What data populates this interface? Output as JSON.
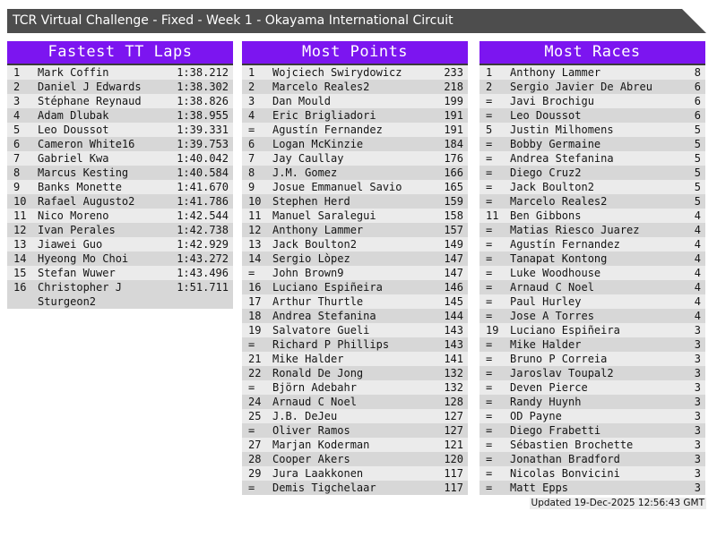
{
  "title_bar": {
    "text": "TCR Virtual Challenge - Fixed - Week 1 - Okayama International Circuit"
  },
  "colors": {
    "accent_purple": "#7c15f0",
    "title_bar_bg": "#4d4d4d",
    "row_odd": "#ebebeb",
    "row_even": "#d7d7d7",
    "header_border": "#3a3a3a",
    "text": "#141414"
  },
  "boards": [
    {
      "title": "Fastest TT Laps",
      "rows": [
        {
          "rank": "1",
          "name": "Mark Coffin",
          "value": "1:38.212"
        },
        {
          "rank": "2",
          "name": "Daniel J Edwards",
          "value": "1:38.302"
        },
        {
          "rank": "3",
          "name": "Stéphane Reynaud",
          "value": "1:38.826"
        },
        {
          "rank": "4",
          "name": "Adam Dlubak",
          "value": "1:38.955"
        },
        {
          "rank": "5",
          "name": "Leo Doussot",
          "value": "1:39.331"
        },
        {
          "rank": "6",
          "name": "Cameron White16",
          "value": "1:39.753"
        },
        {
          "rank": "7",
          "name": "Gabriel Kwa",
          "value": "1:40.042"
        },
        {
          "rank": "8",
          "name": "Marcus Kesting",
          "value": "1:40.584"
        },
        {
          "rank": "9",
          "name": "Banks Monette",
          "value": "1:41.670"
        },
        {
          "rank": "10",
          "name": "Rafael Augusto2",
          "value": "1:41.786"
        },
        {
          "rank": "11",
          "name": "Nico Moreno",
          "value": "1:42.544"
        },
        {
          "rank": "12",
          "name": "Ivan Perales",
          "value": "1:42.738"
        },
        {
          "rank": "13",
          "name": "Jiawei Guo",
          "value": "1:42.929"
        },
        {
          "rank": "14",
          "name": "Hyeong Mo Choi",
          "value": "1:43.272"
        },
        {
          "rank": "15",
          "name": "Stefan Wuwer",
          "value": "1:43.496"
        },
        {
          "rank": "16",
          "name": "Christopher J Sturgeon2",
          "value": "1:51.711"
        }
      ]
    },
    {
      "title": "Most Points",
      "rows": [
        {
          "rank": "1",
          "name": "Wojciech Swirydowicz",
          "value": "233"
        },
        {
          "rank": "2",
          "name": "Marcelo Reales2",
          "value": "218"
        },
        {
          "rank": "3",
          "name": "Dan Mould",
          "value": "199"
        },
        {
          "rank": "4",
          "name": "Eric Brigliadori",
          "value": "191"
        },
        {
          "rank": "=",
          "name": "Agustín Fernandez",
          "value": "191"
        },
        {
          "rank": "6",
          "name": "Logan McKinzie",
          "value": "184"
        },
        {
          "rank": "7",
          "name": "Jay Caullay",
          "value": "176"
        },
        {
          "rank": "8",
          "name": "J.M. Gomez",
          "value": "166"
        },
        {
          "rank": "9",
          "name": "Josue Emmanuel Savio",
          "value": "165"
        },
        {
          "rank": "10",
          "name": "Stephen Herd",
          "value": "159"
        },
        {
          "rank": "11",
          "name": "Manuel Saralegui",
          "value": "158"
        },
        {
          "rank": "12",
          "name": "Anthony Lammer",
          "value": "157"
        },
        {
          "rank": "13",
          "name": "Jack Boulton2",
          "value": "149"
        },
        {
          "rank": "14",
          "name": "Sergio Lòpez",
          "value": "147"
        },
        {
          "rank": "=",
          "name": "John Brown9",
          "value": "147"
        },
        {
          "rank": "16",
          "name": "Luciano Espiñeira",
          "value": "146"
        },
        {
          "rank": "17",
          "name": "Arthur Thurtle",
          "value": "145"
        },
        {
          "rank": "18",
          "name": "Andrea Stefanina",
          "value": "144"
        },
        {
          "rank": "19",
          "name": "Salvatore Gueli",
          "value": "143"
        },
        {
          "rank": "=",
          "name": "Richard P Phillips",
          "value": "143"
        },
        {
          "rank": "21",
          "name": "Mike Halder",
          "value": "141"
        },
        {
          "rank": "22",
          "name": "Ronald De Jong",
          "value": "132"
        },
        {
          "rank": "=",
          "name": "Björn Adebahr",
          "value": "132"
        },
        {
          "rank": "24",
          "name": "Arnaud C Noel",
          "value": "128"
        },
        {
          "rank": "25",
          "name": "J.B. DeJeu",
          "value": "127"
        },
        {
          "rank": "=",
          "name": "Oliver Ramos",
          "value": "127"
        },
        {
          "rank": "27",
          "name": "Marjan Koderman",
          "value": "121"
        },
        {
          "rank": "28",
          "name": "Cooper Akers",
          "value": "120"
        },
        {
          "rank": "29",
          "name": "Jura Laakkonen",
          "value": "117"
        },
        {
          "rank": "=",
          "name": "Demis Tigchelaar",
          "value": "117"
        }
      ]
    },
    {
      "title": "Most Races",
      "rows": [
        {
          "rank": "1",
          "name": "Anthony Lammer",
          "value": "8"
        },
        {
          "rank": "2",
          "name": "Sergio Javier De Abreu",
          "value": "6"
        },
        {
          "rank": "=",
          "name": "Javi Brochigu",
          "value": "6"
        },
        {
          "rank": "=",
          "name": "Leo Doussot",
          "value": "6"
        },
        {
          "rank": "5",
          "name": "Justin Milhomens",
          "value": "5"
        },
        {
          "rank": "=",
          "name": "Bobby Germaine",
          "value": "5"
        },
        {
          "rank": "=",
          "name": "Andrea Stefanina",
          "value": "5"
        },
        {
          "rank": "=",
          "name": "Diego Cruz2",
          "value": "5"
        },
        {
          "rank": "=",
          "name": "Jack Boulton2",
          "value": "5"
        },
        {
          "rank": "=",
          "name": "Marcelo Reales2",
          "value": "5"
        },
        {
          "rank": "11",
          "name": "Ben Gibbons",
          "value": "4"
        },
        {
          "rank": "=",
          "name": "Matias Riesco Juarez",
          "value": "4"
        },
        {
          "rank": "=",
          "name": "Agustín Fernandez",
          "value": "4"
        },
        {
          "rank": "=",
          "name": "Tanapat Kontong",
          "value": "4"
        },
        {
          "rank": "=",
          "name": "Luke Woodhouse",
          "value": "4"
        },
        {
          "rank": "=",
          "name": "Arnaud C Noel",
          "value": "4"
        },
        {
          "rank": "=",
          "name": "Paul Hurley",
          "value": "4"
        },
        {
          "rank": "=",
          "name": "Jose A Torres",
          "value": "4"
        },
        {
          "rank": "19",
          "name": "Luciano Espiñeira",
          "value": "3"
        },
        {
          "rank": "=",
          "name": "Mike Halder",
          "value": "3"
        },
        {
          "rank": "=",
          "name": "Bruno P Correia",
          "value": "3"
        },
        {
          "rank": "=",
          "name": "Jaroslav Toupal2",
          "value": "3"
        },
        {
          "rank": "=",
          "name": "Deven Pierce",
          "value": "3"
        },
        {
          "rank": "=",
          "name": "Randy Huynh",
          "value": "3"
        },
        {
          "rank": "=",
          "name": "OD Payne",
          "value": "3"
        },
        {
          "rank": "=",
          "name": "Diego Frabetti",
          "value": "3"
        },
        {
          "rank": "=",
          "name": "Sébastien Brochette",
          "value": "3"
        },
        {
          "rank": "=",
          "name": "Jonathan Bradford",
          "value": "3"
        },
        {
          "rank": "=",
          "name": "Nicolas Bonvicini",
          "value": "3"
        },
        {
          "rank": "=",
          "name": "Matt Epps",
          "value": "3"
        }
      ]
    }
  ],
  "footer": {
    "updated": "Updated 19-Dec-2025 12:56:43 GMT"
  }
}
